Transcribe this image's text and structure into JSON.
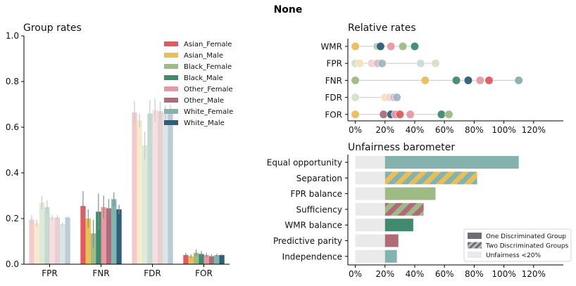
{
  "figure_title": "None",
  "colors": {
    "Asian_Female": "#e05a5f",
    "Asian_Male": "#e8be5a",
    "Black_Female": "#9fbb85",
    "Black_Male": "#418a6e",
    "Other_Female": "#e898a3",
    "Other_Male": "#b06b78",
    "White_Female": "#84b2ae",
    "White_Male": "#2e5f78",
    "grey_bar": "#eaeaea",
    "legend_one": "#6b6e75",
    "legend_two": "#b9bbbe"
  },
  "chart_data": [
    {
      "type": "bar",
      "title": "Group rates",
      "categories": [
        "FPR",
        "FNR",
        "FDR",
        "FOR"
      ],
      "ylim": [
        0,
        1.0
      ],
      "yticks": [
        "0.0",
        "0.2",
        "0.4",
        "0.6",
        "0.8",
        "1.0"
      ],
      "legend_position": "top-right",
      "series": [
        {
          "name": "Asian_Female",
          "values": [
            0.195,
            0.255,
            0.665,
            0.04
          ],
          "err": [
            0.02,
            0.065,
            0.05,
            0.01
          ]
        },
        {
          "name": "Asian_Male",
          "values": [
            0.18,
            0.2,
            0.63,
            0.035
          ],
          "err": [
            0.015,
            0.04,
            0.03,
            0.008
          ]
        },
        {
          "name": "Black_Female",
          "values": [
            0.27,
            0.135,
            0.52,
            0.05
          ],
          "err": [
            0.03,
            0.06,
            0.06,
            0.015
          ]
        },
        {
          "name": "Black_Male",
          "values": [
            0.25,
            0.23,
            0.66,
            0.045
          ],
          "err": [
            0.03,
            0.08,
            0.06,
            0.012
          ]
        },
        {
          "name": "Other_Female",
          "values": [
            0.205,
            0.25,
            0.675,
            0.04
          ],
          "err": [
            0.01,
            0.05,
            0.05,
            0.01
          ]
        },
        {
          "name": "Other_Male",
          "values": [
            0.205,
            0.245,
            0.67,
            0.035
          ],
          "err": [
            0.01,
            0.04,
            0.04,
            0.008
          ]
        },
        {
          "name": "White_Female",
          "values": [
            0.175,
            0.285,
            0.665,
            0.04
          ],
          "err": [
            0.008,
            0.03,
            0.03,
            0.005
          ]
        },
        {
          "name": "White_Male",
          "values": [
            0.205,
            0.24,
            0.68,
            0.04
          ],
          "err": [
            0.005,
            0.02,
            0.02,
            0.004
          ]
        }
      ]
    },
    {
      "type": "scatter",
      "title": "Relative rates",
      "categories": [
        "WMR",
        "FPR",
        "FNR",
        "FDR",
        "FOR"
      ],
      "xlim": [
        -0.05,
        1.4
      ],
      "xticks": [
        "0%",
        "20%",
        "40%",
        "60%",
        "80%",
        "100%",
        "120%"
      ],
      "points": {
        "WMR": [
          [
            "Asian_Male",
            0.0
          ],
          [
            "White_Female",
            0.15
          ],
          [
            "Black_Female",
            0.16
          ],
          [
            "White_Male",
            0.17
          ],
          [
            "Other_Female",
            0.24
          ],
          [
            "Black_Female",
            0.32
          ],
          [
            "Black_Male",
            0.4
          ]
        ],
        "FPR": [
          [
            "Black_Female",
            0.0
          ],
          [
            "Asian_Male",
            0.03
          ],
          [
            "Other_Female",
            0.11
          ],
          [
            "Other_Male",
            0.15
          ],
          [
            "White_Male",
            0.18
          ],
          [
            "White_Female",
            0.44
          ],
          [
            "Black_Female",
            0.54
          ]
        ],
        "FNR": [
          [
            "Black_Female",
            0.0
          ],
          [
            "Asian_Male",
            0.47
          ],
          [
            "Black_Male",
            0.68
          ],
          [
            "White_Male",
            0.76
          ],
          [
            "Other_Female",
            0.84
          ],
          [
            "Asian_Female",
            0.9
          ],
          [
            "White_Female",
            1.1
          ]
        ],
        "FDR": [
          [
            "Black_Female",
            0.0
          ],
          [
            "Asian_Male",
            0.2
          ],
          [
            "Other_Female",
            0.23
          ],
          [
            "Other_Male",
            0.26
          ],
          [
            "White_Male",
            0.28
          ]
        ],
        "FOR": [
          [
            "Asian_Male",
            0.0
          ],
          [
            "Other_Male",
            0.19
          ],
          [
            "White_Male",
            0.24
          ],
          [
            "Other_Female",
            0.27
          ],
          [
            "Asian_Female",
            0.3
          ],
          [
            "Other_Female",
            0.37
          ],
          [
            "Black_Male",
            0.58
          ],
          [
            "Black_Female",
            0.63
          ]
        ]
      }
    },
    {
      "type": "bar",
      "orientation": "horizontal",
      "title": "Unfairness barometer",
      "categories": [
        "Equal opportunity",
        "Separation",
        "FPR balance",
        "Sufficiency",
        "WMR balance",
        "Predictive parity",
        "Independence"
      ],
      "values": [
        1.1,
        0.82,
        0.54,
        0.46,
        0.39,
        0.29,
        0.28
      ],
      "threshold": 0.2,
      "xlim": [
        -0.05,
        1.4
      ],
      "xticks": [
        "0%",
        "20%",
        "40%",
        "60%",
        "80%",
        "100%",
        "120%"
      ],
      "bars": [
        {
          "label": "Equal opportunity",
          "colors": [
            "White_Female"
          ]
        },
        {
          "label": "Separation",
          "colors": [
            "White_Female",
            "Asian_Male"
          ]
        },
        {
          "label": "FPR balance",
          "colors": [
            "Black_Female"
          ]
        },
        {
          "label": "Sufficiency",
          "colors": [
            "Other_Male",
            "Black_Female"
          ]
        },
        {
          "label": "WMR balance",
          "colors": [
            "Black_Male"
          ]
        },
        {
          "label": "Predictive parity",
          "colors": [
            "Other_Male"
          ]
        },
        {
          "label": "Independence",
          "colors": [
            "White_Female"
          ]
        }
      ],
      "legend": [
        "One Discriminated Group",
        "Two Discriminated Groups",
        "Unfairness <20%"
      ],
      "legend_position": "bottom-right"
    }
  ]
}
